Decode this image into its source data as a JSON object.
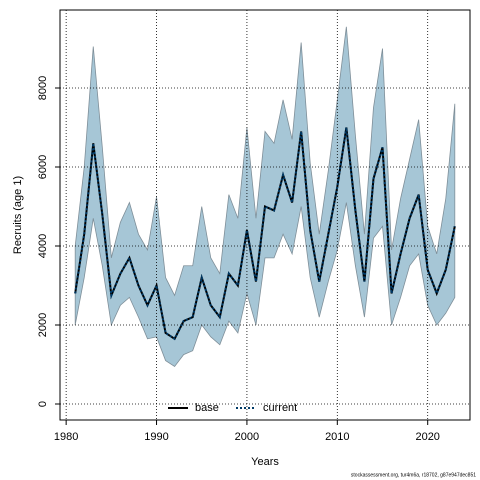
{
  "chart_data": {
    "type": "line",
    "xlabel": "Years",
    "ylabel": "Recruits (age 1)",
    "footer": "stockassessment.org, tur4m6a, r18702, g87e947dec851",
    "x": [
      1981,
      1982,
      1983,
      1984,
      1985,
      1986,
      1987,
      1988,
      1989,
      1990,
      1991,
      1992,
      1993,
      1994,
      1995,
      1996,
      1997,
      1998,
      1999,
      2000,
      2001,
      2002,
      2003,
      2004,
      2005,
      2006,
      2007,
      2008,
      2009,
      2010,
      2011,
      2012,
      2013,
      2014,
      2015,
      2016,
      2017,
      2018,
      2019,
      2020,
      2021,
      2022,
      2023
    ],
    "series": [
      {
        "name": "base",
        "color": "#000000",
        "dashed": false,
        "values": [
          2800,
          4300,
          6600,
          4800,
          2750,
          3300,
          3700,
          3000,
          2500,
          3000,
          1800,
          1650,
          2100,
          2200,
          3200,
          2500,
          2200,
          3300,
          3000,
          4400,
          3100,
          5000,
          4900,
          5800,
          5100,
          6900,
          4400,
          3100,
          4300,
          5500,
          7000,
          4900,
          3100,
          5700,
          6500,
          2800,
          3800,
          4700,
          5300,
          3400,
          2800,
          3400,
          4500
        ]
      },
      {
        "name": "current",
        "color": "#003a66",
        "dashed": true,
        "values": [
          2800,
          4300,
          6600,
          4800,
          2750,
          3300,
          3700,
          3000,
          2500,
          3000,
          1800,
          1650,
          2100,
          2200,
          3200,
          2500,
          2200,
          3300,
          3000,
          4400,
          3100,
          5000,
          4900,
          5800,
          5100,
          6900,
          4400,
          3100,
          4300,
          5500,
          7000,
          4900,
          3100,
          5700,
          6500,
          2800,
          3800,
          4700,
          5300,
          3400,
          2800,
          3400,
          4500
        ]
      }
    ],
    "band": {
      "color": "#a6c6d6",
      "lower": [
        2000,
        3200,
        4700,
        3500,
        2000,
        2500,
        2700,
        2200,
        1650,
        1700,
        1100,
        950,
        1250,
        1350,
        2000,
        1700,
        1500,
        2100,
        1800,
        2800,
        2000,
        3700,
        3700,
        4300,
        3800,
        5000,
        3200,
        2200,
        3100,
        3900,
        5100,
        3500,
        2200,
        4200,
        4500,
        2000,
        2700,
        3500,
        3800,
        2500,
        2000,
        2300,
        2700
      ],
      "upper": [
        4000,
        6000,
        9050,
        6500,
        3700,
        4600,
        5100,
        4300,
        3900,
        5250,
        3200,
        2750,
        3500,
        3500,
        5000,
        3700,
        3300,
        5300,
        4700,
        7000,
        4700,
        6900,
        6600,
        7700,
        6700,
        9150,
        6100,
        4300,
        5900,
        7700,
        9550,
        6800,
        4300,
        7500,
        9000,
        3900,
        5200,
        6200,
        7200,
        4500,
        3800,
        5200,
        7600
      ]
    },
    "xlim": [
      1979.32,
      2024.68
    ],
    "ylim": [
      -405,
      9975
    ],
    "xticks": [
      1980,
      1990,
      2000,
      2010,
      2020
    ],
    "yticks": [
      0,
      2000,
      4000,
      6000,
      8000
    ],
    "grid": true,
    "legend": "bottom"
  }
}
